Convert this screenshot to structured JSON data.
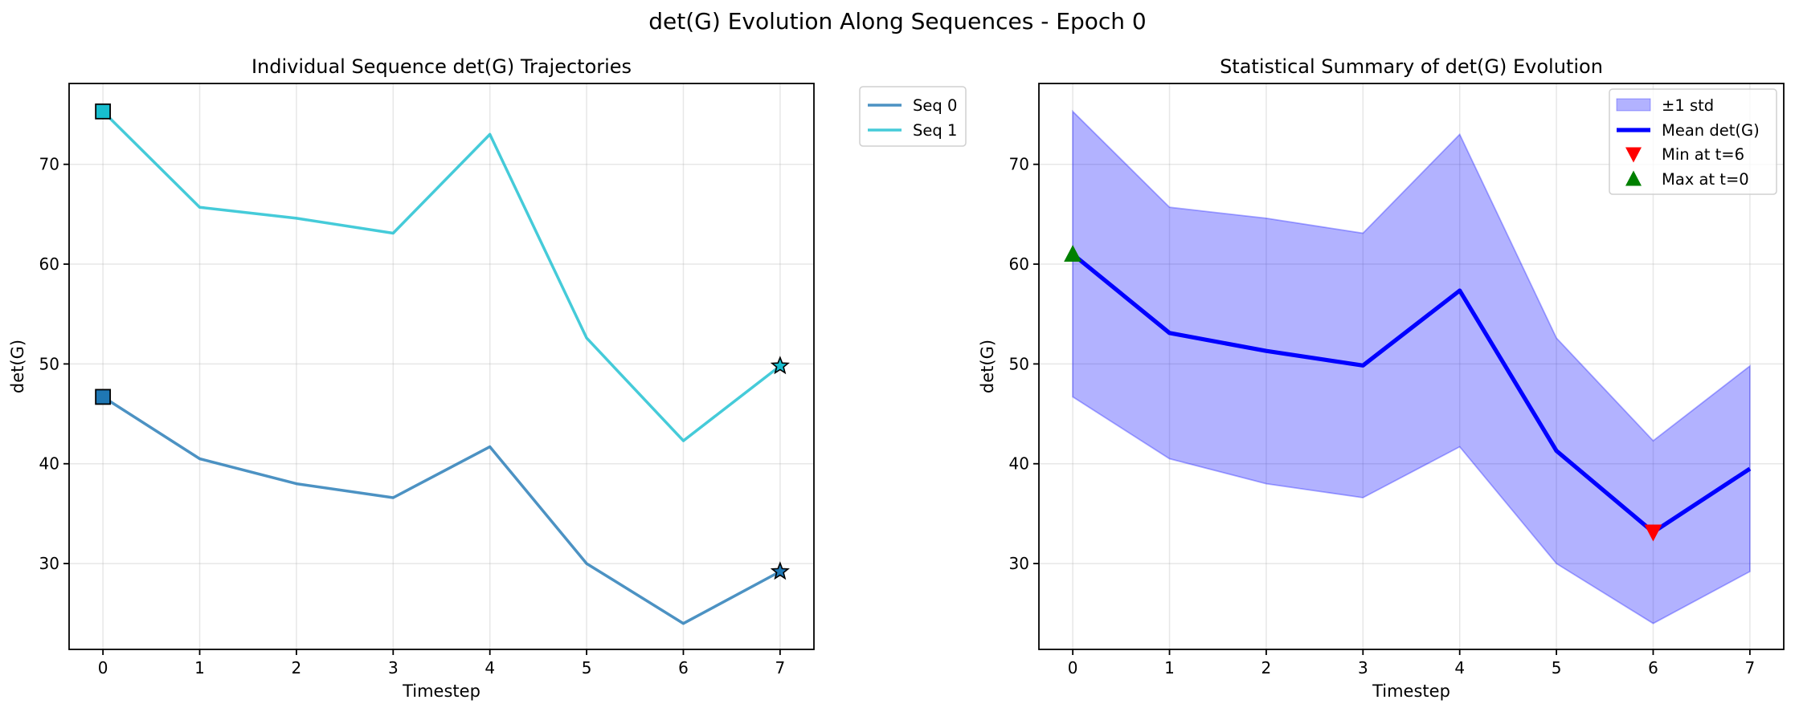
{
  "figure": {
    "suptitle": "det(G) Evolution Along Sequences - Epoch 0"
  },
  "chart_data": [
    {
      "type": "line",
      "title": "Individual Sequence det(G) Trajectories",
      "xlabel": "Timestep",
      "ylabel": "det(G)",
      "x": [
        0,
        1,
        2,
        3,
        4,
        5,
        6,
        7
      ],
      "xlim": [
        -0.35,
        7.35
      ],
      "ylim": [
        21.4,
        78.1
      ],
      "xticks": [
        "0",
        "1",
        "2",
        "3",
        "4",
        "5",
        "6",
        "7"
      ],
      "yticks": [
        "30",
        "40",
        "50",
        "60",
        "70"
      ],
      "grid": true,
      "legend_placement": "outside upper right",
      "series": [
        {
          "name": "Seq 0",
          "color": "#1f77b4",
          "values": [
            46.7,
            40.5,
            38.0,
            36.6,
            41.7,
            30.0,
            24.0,
            29.2
          ],
          "start_marker": "square",
          "end_marker": "star"
        },
        {
          "name": "Seq 1",
          "color": "#17becf",
          "values": [
            75.3,
            65.7,
            64.6,
            63.1,
            73.0,
            52.6,
            42.3,
            49.8
          ],
          "start_marker": "square",
          "end_marker": "star"
        }
      ]
    },
    {
      "type": "area",
      "title": "Statistical Summary of det(G) Evolution",
      "xlabel": "Timestep",
      "ylabel": "det(G)",
      "x": [
        0,
        1,
        2,
        3,
        4,
        5,
        6,
        7
      ],
      "xlim": [
        -0.35,
        7.35
      ],
      "ylim": [
        21.4,
        78.1
      ],
      "xticks": [
        "0",
        "1",
        "2",
        "3",
        "4",
        "5",
        "6",
        "7"
      ],
      "yticks": [
        "30",
        "40",
        "50",
        "60",
        "70"
      ],
      "grid": true,
      "legend_placement": "upper right",
      "band": {
        "name": "±1 std",
        "color": "#0000ff",
        "lower": [
          46.7,
          40.5,
          38.0,
          36.6,
          41.7,
          30.0,
          24.0,
          29.2
        ],
        "upper": [
          75.3,
          65.7,
          64.6,
          63.1,
          73.0,
          52.6,
          42.3,
          49.8
        ]
      },
      "series": [
        {
          "name": "Mean det(G)",
          "color": "#0000ff",
          "values": [
            61.0,
            53.1,
            51.3,
            49.85,
            57.35,
            41.3,
            33.15,
            39.5
          ]
        }
      ],
      "markers": [
        {
          "name": "Min at t=6",
          "x": 6,
          "y": 33.15,
          "color": "#ff0000",
          "shape": "triangle-down"
        },
        {
          "name": "Max at t=0",
          "x": 0,
          "y": 61.0,
          "color": "#008000",
          "shape": "triangle-up"
        }
      ]
    }
  ]
}
